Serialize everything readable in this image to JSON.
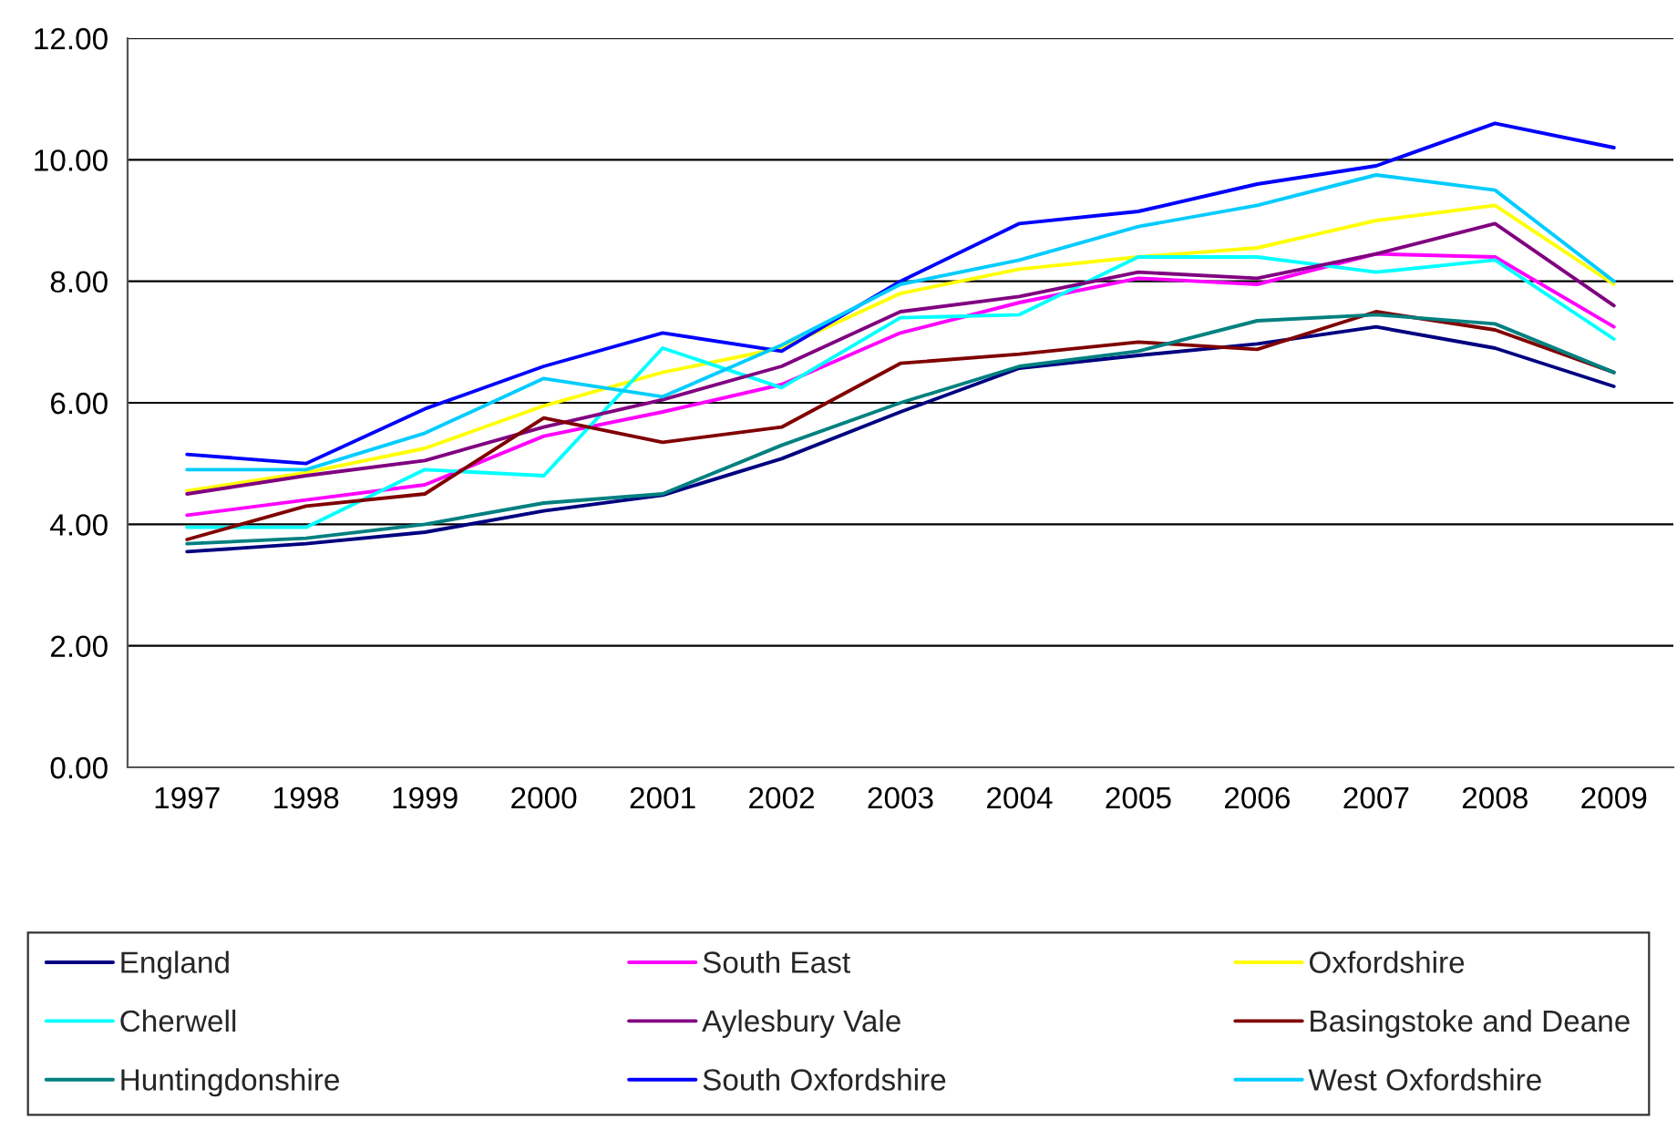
{
  "chart_data": {
    "type": "line",
    "categories": [
      "1997",
      "1998",
      "1999",
      "2000",
      "2001",
      "2002",
      "2003",
      "2004",
      "2005",
      "2006",
      "2007",
      "2008",
      "2009"
    ],
    "ylim": [
      0,
      12
    ],
    "yticks": [
      {
        "value": 0,
        "label": "0.00"
      },
      {
        "value": 2,
        "label": "2.00"
      },
      {
        "value": 4,
        "label": "4.00"
      },
      {
        "value": 6,
        "label": "6.00"
      },
      {
        "value": 8,
        "label": "8.00"
      },
      {
        "value": 10,
        "label": "10.00"
      },
      {
        "value": 12,
        "label": "12.00"
      }
    ],
    "grid": "y",
    "legend": "bottom",
    "marker": "none",
    "line_style": "solid",
    "series": [
      {
        "name": "England",
        "color": "#000080",
        "values": [
          3.55,
          3.68,
          3.87,
          4.22,
          4.48,
          5.08,
          5.85,
          6.57,
          6.78,
          6.97,
          7.25,
          6.9,
          6.27
        ]
      },
      {
        "name": "South East",
        "color": "#ff00ff",
        "values": [
          4.15,
          4.4,
          4.65,
          5.45,
          5.85,
          6.3,
          7.15,
          7.65,
          8.05,
          7.95,
          8.45,
          8.4,
          7.25
        ]
      },
      {
        "name": "Oxfordshire",
        "color": "#ffff00",
        "values": [
          4.55,
          4.85,
          5.25,
          5.95,
          6.5,
          6.9,
          7.8,
          8.2,
          8.4,
          8.55,
          9.0,
          9.25,
          7.95
        ]
      },
      {
        "name": "Cherwell",
        "color": "#00ffff",
        "values": [
          3.95,
          3.95,
          4.9,
          4.8,
          6.9,
          6.25,
          7.4,
          7.45,
          8.4,
          8.4,
          8.15,
          8.35,
          7.05
        ]
      },
      {
        "name": "Aylesbury Vale",
        "color": "#800080",
        "values": [
          4.5,
          4.8,
          5.05,
          5.6,
          6.05,
          6.6,
          7.5,
          7.75,
          8.15,
          8.05,
          8.45,
          8.95,
          7.6
        ]
      },
      {
        "name": "Basingstoke and Deane",
        "color": "#800000",
        "values": [
          3.75,
          4.3,
          4.5,
          5.75,
          5.35,
          5.6,
          6.65,
          6.8,
          7.0,
          6.88,
          7.5,
          7.2,
          6.5
        ]
      },
      {
        "name": "Huntingdonshire",
        "color": "#008080",
        "values": [
          3.68,
          3.77,
          4.0,
          4.35,
          4.5,
          5.3,
          6.0,
          6.6,
          6.85,
          7.35,
          7.45,
          7.3,
          6.5
        ]
      },
      {
        "name": "South Oxfordshire",
        "color": "#0000ff",
        "values": [
          5.15,
          5.0,
          5.9,
          6.6,
          7.15,
          6.85,
          8.0,
          8.95,
          9.15,
          9.6,
          9.9,
          10.6,
          10.2
        ]
      },
      {
        "name": "West Oxfordshire",
        "color": "#00ccff",
        "values": [
          4.9,
          4.9,
          5.5,
          6.4,
          6.1,
          6.95,
          7.95,
          8.35,
          8.9,
          9.25,
          9.75,
          9.5,
          8.0
        ]
      }
    ]
  }
}
